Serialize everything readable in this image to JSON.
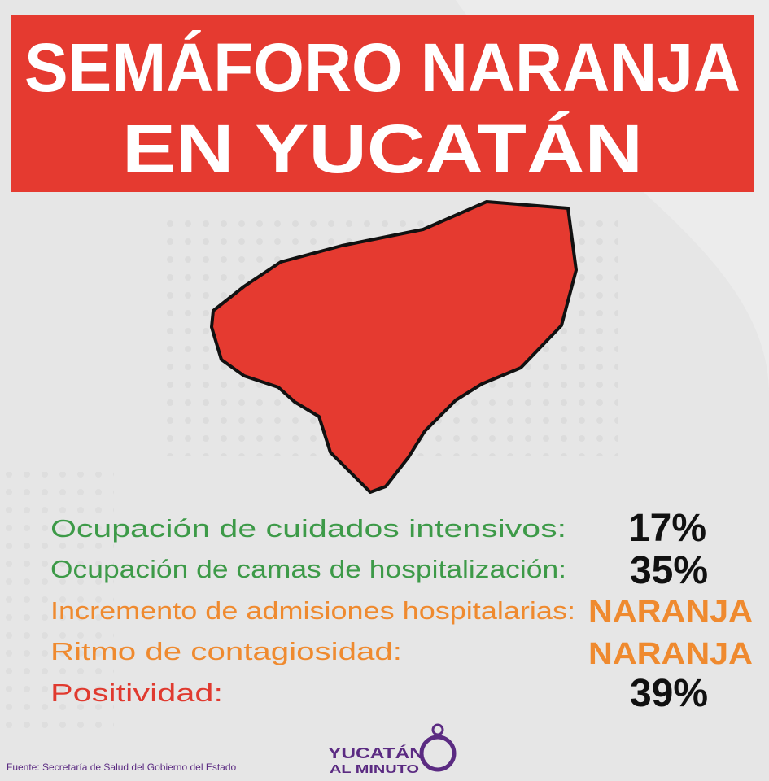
{
  "header": {
    "title_lines": [
      "SEMÁFORO NARANJA",
      "EN YUCATÁN"
    ]
  },
  "indicators": [
    {
      "label": "Ocupación de cuidados intensivos:",
      "value": "17%"
    },
    {
      "label": "Ocupación de camas de hospitalización:",
      "value": "35%"
    },
    {
      "label": "Incremento de admisiones hospitalarias:",
      "value": "NARANJA"
    },
    {
      "label": "Ritmo de contagiosidad:",
      "value": "NARANJA"
    },
    {
      "label": "Positividad:",
      "value": "39%"
    }
  ],
  "footer": {
    "source": "Fuente: Secretaría de Salud del Gobierno del Estado",
    "logo_lines": [
      "YUCATÁN",
      "AL MINUTO"
    ]
  }
}
